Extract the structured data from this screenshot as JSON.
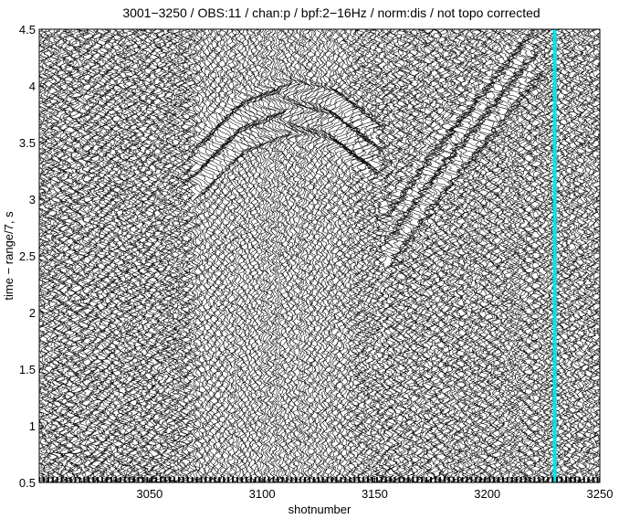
{
  "chart_data": {
    "type": "seismic-wiggle-section",
    "title": "3001−3250 / OBS:11 / chan:p / bpf:2−16Hz / norm:dis / not topo corrected",
    "xlabel": "shotnumber",
    "ylabel": "time − range/7, s",
    "xlim": [
      3001,
      3250
    ],
    "ylim": [
      0.5,
      4.5
    ],
    "y_inverted": false,
    "x_ticks": [
      3050,
      3100,
      3150,
      3200,
      3250
    ],
    "y_ticks": [
      0.5,
      1,
      1.5,
      2,
      2.5,
      3,
      3.5,
      4,
      4.5
    ],
    "x_tick_labels": [
      "3050",
      "3100",
      "3150",
      "3200",
      "3250"
    ],
    "y_tick_labels": [
      "0.5",
      "1",
      "1.5",
      "2",
      "2.5",
      "3",
      "3.5",
      "4",
      "4.5"
    ],
    "trace_color": "#000000",
    "fill_color": "#000000",
    "highlight_trace": {
      "shot": 3230,
      "color": "#00e5ee"
    },
    "arrivals": [
      {
        "name": "refracted-branch",
        "points": [
          [
            3070,
            3.05
          ],
          [
            3090,
            3.45
          ],
          [
            3110,
            3.6
          ],
          [
            3130,
            3.5
          ],
          [
            3150,
            3.2
          ],
          [
            3155,
            2.45
          ]
        ]
      },
      {
        "name": "returning-branch",
        "points": [
          [
            3155,
            2.45
          ],
          [
            3175,
            3.0
          ],
          [
            3200,
            3.6
          ],
          [
            3220,
            4.1
          ]
        ]
      }
    ]
  }
}
